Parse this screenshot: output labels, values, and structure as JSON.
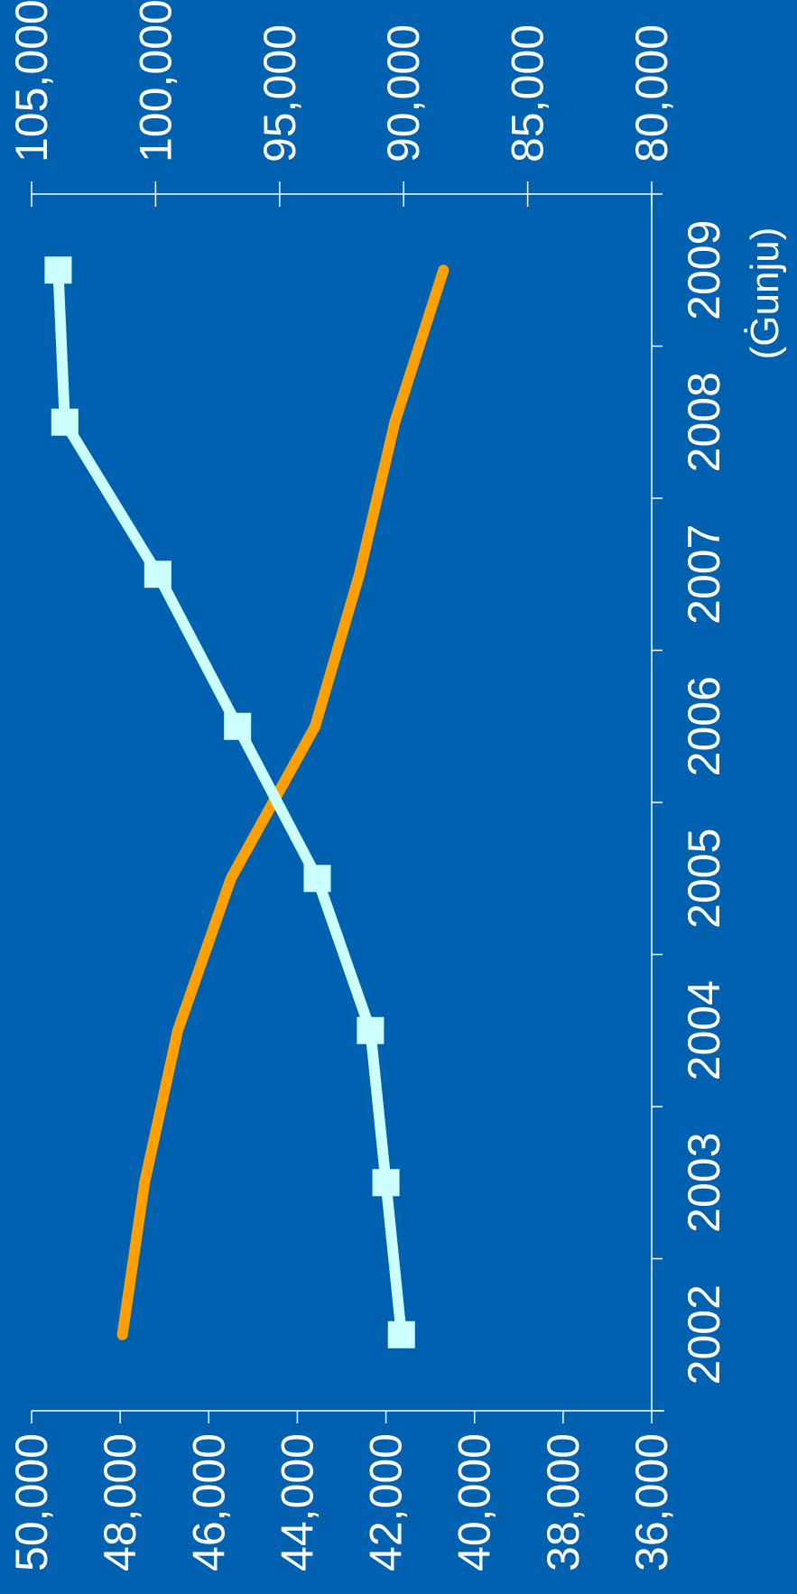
{
  "chart_data": {
    "type": "line",
    "orientation": "rotated-90-clockwise",
    "background": "#0061B0",
    "axis_color": "#FFFFFF",
    "x": [
      "2002",
      "2003",
      "2004",
      "2005",
      "2006",
      "2007",
      "2008",
      "2009"
    ],
    "xlabel": "(Ġunju)",
    "y_left": {
      "ticks": [
        "50,000",
        "48,000",
        "46,000",
        "44,000",
        "42,000",
        "40,000",
        "38,000",
        "36,000"
      ],
      "lim": [
        36000,
        50000
      ]
    },
    "y_right": {
      "ticks": [
        "105,000",
        "100,000",
        "95,000",
        "90,000",
        "85,000",
        "80,000"
      ],
      "lim": [
        80000,
        105000
      ]
    },
    "grid": false,
    "series": [
      {
        "axis": "left",
        "color": "#FFA000",
        "marker": "none",
        "values": [
          47950,
          47450,
          46700,
          45500,
          43600,
          42600,
          41800,
          40700
        ]
      },
      {
        "axis": "left",
        "color": "#CCFFFF",
        "marker": "square",
        "values": [
          41650,
          42000,
          42350,
          43550,
          45350,
          47150,
          49250,
          49400
        ]
      }
    ]
  }
}
